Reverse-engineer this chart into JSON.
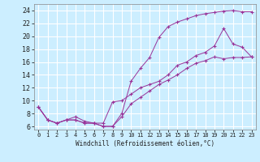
{
  "xlabel": "Windchill (Refroidissement éolien,°C)",
  "bg_color": "#cceeff",
  "line_color": "#993399",
  "xlim": [
    -0.5,
    23.5
  ],
  "ylim": [
    5.5,
    25.0
  ],
  "xticks": [
    0,
    1,
    2,
    3,
    4,
    5,
    6,
    7,
    8,
    9,
    10,
    11,
    12,
    13,
    14,
    15,
    16,
    17,
    18,
    19,
    20,
    21,
    22,
    23
  ],
  "yticks": [
    6,
    8,
    10,
    12,
    14,
    16,
    18,
    20,
    22,
    24
  ],
  "line1_x": [
    0,
    1,
    2,
    3,
    4,
    5,
    6,
    7,
    8,
    9,
    10,
    11,
    12,
    13,
    14,
    15,
    16,
    17,
    18,
    19,
    20,
    21,
    22,
    23
  ],
  "line1_y": [
    9.0,
    7.0,
    6.5,
    7.0,
    7.0,
    6.5,
    6.5,
    6.0,
    6.0,
    8.0,
    13.0,
    15.0,
    16.7,
    19.8,
    21.5,
    22.2,
    22.7,
    23.2,
    23.5,
    23.7,
    23.9,
    24.0,
    23.8,
    23.8
  ],
  "line2_x": [
    0,
    1,
    2,
    3,
    4,
    5,
    6,
    7,
    8,
    9,
    10,
    11,
    12,
    13,
    14,
    15,
    16,
    17,
    18,
    19,
    20,
    21,
    22,
    23
  ],
  "line2_y": [
    9.0,
    7.0,
    6.5,
    7.0,
    7.5,
    6.8,
    6.5,
    6.5,
    9.8,
    10.0,
    11.0,
    12.0,
    12.5,
    13.0,
    14.0,
    15.5,
    16.0,
    17.0,
    17.5,
    18.5,
    21.2,
    18.8,
    18.3,
    16.8
  ],
  "line3_x": [
    0,
    1,
    2,
    3,
    4,
    5,
    6,
    7,
    8,
    9,
    10,
    11,
    12,
    13,
    14,
    15,
    16,
    17,
    18,
    19,
    20,
    21,
    22,
    23
  ],
  "line3_y": [
    9.0,
    7.0,
    6.5,
    7.0,
    7.0,
    6.5,
    6.5,
    6.0,
    6.0,
    7.5,
    9.5,
    10.5,
    11.5,
    12.5,
    13.2,
    14.0,
    15.0,
    15.8,
    16.2,
    16.8,
    16.5,
    16.7,
    16.7,
    16.8
  ]
}
